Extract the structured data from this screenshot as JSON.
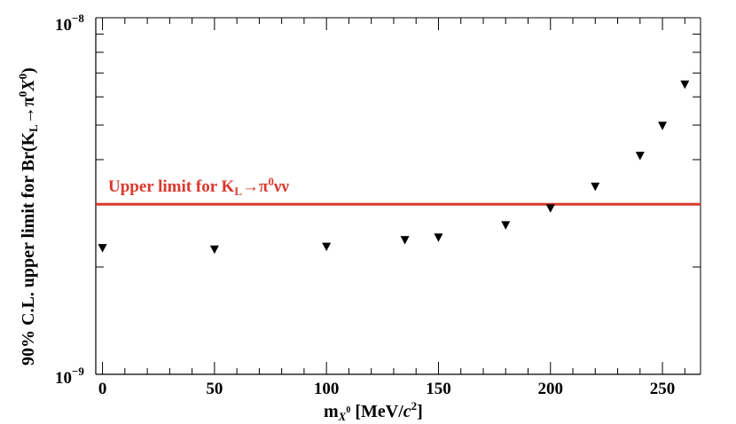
{
  "chart_data": {
    "type": "scatter",
    "marker": "inverted-triangle",
    "title": "",
    "xlabel": "m_{X^0} [MeV/c^2]",
    "xlabel_parts": {
      "main": "m",
      "sub": "X",
      "sub_sup": "0",
      "units": " [MeV/",
      "units_c": "c",
      "units_exp": "2",
      "units_close": "]"
    },
    "ylabel_parts": {
      "prefix": "90% C.L. upper limit for Br(K",
      "sub_L": "L",
      "arrow": "→π",
      "sup1": "0",
      "x": "X",
      "sup2": "0",
      "close": ")"
    },
    "yscale": "log",
    "ylim": [
      1e-09,
      1e-08
    ],
    "xlim": [
      -3,
      267
    ],
    "xticks": [
      0,
      50,
      100,
      150,
      200,
      250
    ],
    "xtick_labels": [
      "0",
      "50",
      "100",
      "150",
      "200",
      "250"
    ],
    "ytick_labels": [
      {
        "value": 1e-09,
        "base": "10",
        "exp": "−9"
      },
      {
        "value": 1e-08,
        "base": "10",
        "exp": "−8"
      }
    ],
    "series": [
      {
        "name": "90% C.L. upper limit",
        "x": [
          0,
          50,
          100,
          135,
          150,
          180,
          200,
          220,
          240,
          250,
          260
        ],
        "y": [
          2.26e-09,
          2.24e-09,
          2.28e-09,
          2.38e-09,
          2.42e-09,
          2.62e-09,
          2.92e-09,
          3.36e-09,
          4.1e-09,
          4.98e-09,
          6.5e-09
        ]
      }
    ],
    "reference_line": {
      "value": 3e-09,
      "color": "#d93a2e",
      "label_main": "Upper limit for K",
      "label_sub": "L",
      "label_arrow": "→π",
      "label_sup": "0",
      "label_tail": "νν"
    }
  },
  "colors": {
    "axis": "#000000",
    "marker": "#000000",
    "limit_line": "#d93a2e"
  }
}
